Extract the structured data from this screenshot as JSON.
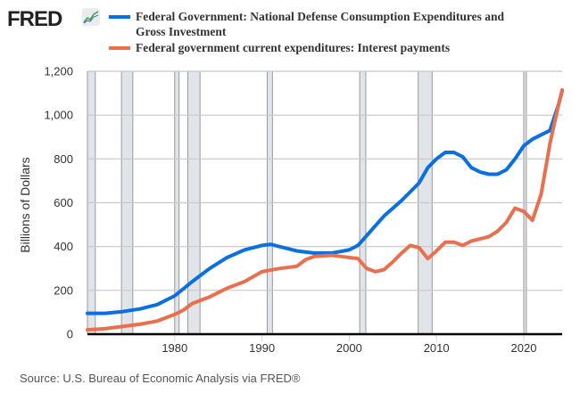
{
  "header": {
    "logo_text": "FRED",
    "logo_icon": "chart-line-icon"
  },
  "legend": [
    {
      "label": "Federal Government: National Defense Consumption Expenditures and Gross Investment",
      "color": "#0a6fe0"
    },
    {
      "label": "Federal government current expenditures: Interest payments",
      "color": "#e8704f"
    }
  ],
  "source": "Source: U.S. Bureau of Economic Analysis via FRED®",
  "chart_data": {
    "type": "line",
    "title": "",
    "xlabel": "",
    "ylabel": "Billions of Dollars",
    "xlim": [
      1970,
      2024.4
    ],
    "ylim": [
      0,
      1200
    ],
    "yticks": [
      0,
      200,
      400,
      600,
      800,
      1000,
      1200
    ],
    "ytick_labels": [
      "0",
      "200",
      "400",
      "600",
      "800",
      "1,000",
      "1,200"
    ],
    "xticks": [
      1980,
      1990,
      2000,
      2010,
      2020
    ],
    "xtick_labels": [
      "1980",
      "1990",
      "2000",
      "2010",
      "2020"
    ],
    "grid": true,
    "legend_position": "top",
    "recessions": [
      [
        1970.0,
        1970.9
      ],
      [
        1973.9,
        1975.2
      ],
      [
        1980.0,
        1980.5
      ],
      [
        1981.5,
        1982.9
      ],
      [
        1990.6,
        1991.2
      ],
      [
        2001.2,
        2001.9
      ],
      [
        2007.9,
        2009.5
      ],
      [
        2020.0,
        2020.3
      ]
    ],
    "series": [
      {
        "name": "Federal Government: National Defense Consumption Expenditures and Gross Investment",
        "color": "#0a6fe0",
        "x": [
          1970,
          1972,
          1974,
          1976,
          1978,
          1980,
          1982,
          1984,
          1986,
          1988,
          1990,
          1991,
          1992,
          1994,
          1996,
          1998,
          2000,
          2001,
          2002,
          2004,
          2006,
          2008,
          2009,
          2010,
          2011,
          2012,
          2013,
          2014,
          2015,
          2016,
          2017,
          2018,
          2019,
          2020,
          2021,
          2022,
          2023,
          2024,
          2024.4
        ],
        "values": [
          95,
          95,
          103,
          115,
          135,
          175,
          240,
          300,
          350,
          385,
          405,
          410,
          400,
          380,
          370,
          370,
          385,
          405,
          450,
          540,
          610,
          690,
          760,
          800,
          830,
          830,
          810,
          760,
          740,
          730,
          730,
          750,
          800,
          860,
          890,
          910,
          930,
          1050,
          1110
        ]
      },
      {
        "name": "Federal government current expenditures: Interest payments",
        "color": "#e8704f",
        "x": [
          1970,
          1972,
          1974,
          1976,
          1978,
          1980,
          1981,
          1982,
          1984,
          1986,
          1988,
          1990,
          1992,
          1994,
          1995,
          1996,
          1998,
          1999,
          2000,
          2001,
          2002,
          2003,
          2004,
          2005,
          2006,
          2007,
          2008,
          2009,
          2010,
          2011,
          2012,
          2013,
          2014,
          2015,
          2016,
          2017,
          2018,
          2019,
          2020,
          2021,
          2022,
          2023,
          2024,
          2024.4
        ],
        "values": [
          20,
          25,
          35,
          45,
          60,
          90,
          110,
          140,
          170,
          210,
          240,
          285,
          300,
          310,
          340,
          355,
          360,
          355,
          350,
          345,
          300,
          285,
          295,
          330,
          370,
          405,
          395,
          345,
          380,
          420,
          420,
          405,
          425,
          435,
          445,
          470,
          510,
          575,
          560,
          520,
          640,
          870,
          1050,
          1115
        ]
      }
    ]
  }
}
